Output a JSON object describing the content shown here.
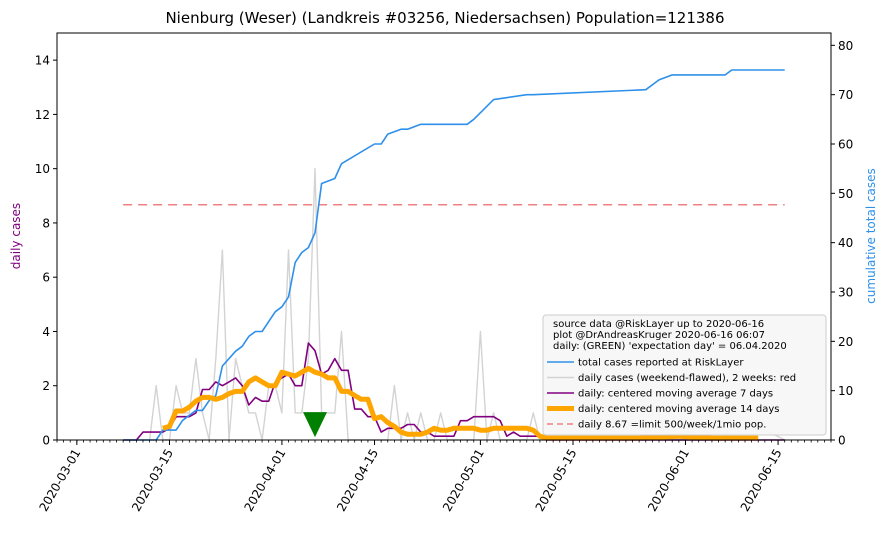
{
  "chart_data": {
    "type": "line",
    "title": "Nienburg (Weser) (Landkreis #03256, Niedersachsen) Population=121386",
    "ylabel_left": "daily cases",
    "ylabel_right": "cumulative total cases",
    "x_range": [
      "2020-02-27",
      "2020-06-23"
    ],
    "ylim_left": [
      0,
      15
    ],
    "ylim_right": [
      0,
      82.5
    ],
    "x_ticks": [
      "2020-03-01",
      "2020-03-15",
      "2020-04-01",
      "2020-04-15",
      "2020-05-01",
      "2020-05-15",
      "2020-06-01",
      "2020-06-15"
    ],
    "y_ticks_left": [
      0,
      2,
      4,
      6,
      8,
      10,
      12,
      14
    ],
    "y_ticks_right": [
      0,
      10,
      20,
      30,
      40,
      50,
      60,
      70,
      80
    ],
    "legend_position": "bottom-right",
    "legend_header": [
      "source data @RiskLayer up to 2020-06-16",
      "plot @DrAndreasKruger 2020-06-16 06:07",
      "daily: (GREEN) 'expectation day' = 06.04.2020"
    ],
    "colors": {
      "total": "#2e90ea",
      "daily": "#d3d3d3",
      "ma7": "#800080",
      "ma14": "#ffa500",
      "limit": "#f08080",
      "marker": "#008000",
      "ylabel_left": "#800080",
      "ylabel_right": "#2e90ea"
    },
    "limit_value": 8.67,
    "limit_x_range": [
      "2020-03-08",
      "2020-06-16"
    ],
    "expectation_day": {
      "x": "2020-04-06",
      "y": 0.55
    },
    "series": [
      {
        "name": "total cases reported at RiskLayer",
        "axis": "right",
        "x": [
          "2020-03-08",
          "2020-03-13",
          "2020-03-14",
          "2020-03-16",
          "2020-03-17",
          "2020-03-18",
          "2020-03-19",
          "2020-03-20",
          "2020-03-21",
          "2020-03-22",
          "2020-03-23",
          "2020-03-25",
          "2020-03-26",
          "2020-03-27",
          "2020-03-28",
          "2020-03-29",
          "2020-03-30",
          "2020-03-31",
          "2020-04-01",
          "2020-04-02",
          "2020-04-03",
          "2020-04-04",
          "2020-04-05",
          "2020-04-06",
          "2020-04-07",
          "2020-04-09",
          "2020-04-10",
          "2020-04-15",
          "2020-04-16",
          "2020-04-17",
          "2020-04-19",
          "2020-04-20",
          "2020-04-22",
          "2020-04-29",
          "2020-04-30",
          "2020-05-03",
          "2020-05-08",
          "2020-05-09",
          "2020-05-26",
          "2020-05-28",
          "2020-05-30",
          "2020-06-07",
          "2020-06-08",
          "2020-06-16"
        ],
        "values": [
          0,
          0,
          2,
          2,
          4,
          5,
          6,
          6,
          8,
          9,
          15,
          18,
          19,
          21,
          22,
          22,
          24,
          26,
          27,
          29,
          36,
          38,
          39,
          42,
          52,
          53,
          56,
          60,
          60,
          62,
          63,
          63,
          64,
          64,
          65,
          69,
          70,
          70,
          71,
          73,
          74,
          74,
          75,
          75
        ]
      },
      {
        "name": "daily cases (weekend-flawed), 2 weeks: red",
        "axis": "left",
        "x": [
          "2020-03-08",
          "2020-03-12",
          "2020-03-13",
          "2020-03-14",
          "2020-03-15",
          "2020-03-16",
          "2020-03-17",
          "2020-03-18",
          "2020-03-19",
          "2020-03-20",
          "2020-03-21",
          "2020-03-22",
          "2020-03-23",
          "2020-03-24",
          "2020-03-25",
          "2020-03-26",
          "2020-03-27",
          "2020-03-28",
          "2020-03-29",
          "2020-03-30",
          "2020-03-31",
          "2020-04-01",
          "2020-04-02",
          "2020-04-03",
          "2020-04-04",
          "2020-04-05",
          "2020-04-06",
          "2020-04-07",
          "2020-04-08",
          "2020-04-09",
          "2020-04-10",
          "2020-04-11",
          "2020-04-12",
          "2020-04-13",
          "2020-04-14",
          "2020-04-15",
          "2020-04-16",
          "2020-04-17",
          "2020-04-18",
          "2020-04-19",
          "2020-04-20",
          "2020-04-21",
          "2020-04-22",
          "2020-04-23",
          "2020-04-24",
          "2020-04-25",
          "2020-04-26",
          "2020-04-27",
          "2020-04-28",
          "2020-04-29",
          "2020-04-30",
          "2020-05-01",
          "2020-05-02",
          "2020-05-03",
          "2020-05-04",
          "2020-05-05",
          "2020-05-06",
          "2020-05-07",
          "2020-05-08",
          "2020-05-09",
          "2020-05-10",
          "2020-05-11",
          "2020-05-12",
          "2020-05-26",
          "2020-05-27",
          "2020-05-28",
          "2020-05-29",
          "2020-06-07",
          "2020-06-08",
          "2020-06-16"
        ],
        "values": [
          0,
          0,
          2,
          0,
          0,
          2,
          1,
          1,
          3,
          1,
          0,
          3,
          7,
          0,
          3,
          2,
          1,
          1,
          0,
          2,
          2,
          1,
          7,
          1,
          1,
          3,
          10,
          1,
          1,
          1,
          4,
          0,
          0,
          0,
          0,
          0,
          0,
          0,
          2,
          0,
          1,
          0,
          1,
          0,
          0,
          1,
          0,
          0,
          0,
          0,
          0,
          4,
          0,
          1,
          0,
          0,
          0,
          0,
          0,
          1,
          0,
          0,
          0,
          0,
          1,
          1,
          0,
          0,
          1,
          0
        ]
      },
      {
        "name": "daily: centered moving average 7 days",
        "axis": "left",
        "x": [
          "2020-03-08",
          "2020-03-10",
          "2020-03-11",
          "2020-03-12",
          "2020-03-13",
          "2020-03-14",
          "2020-03-15",
          "2020-03-16",
          "2020-03-17",
          "2020-03-18",
          "2020-03-19",
          "2020-03-20",
          "2020-03-21",
          "2020-03-22",
          "2020-03-23",
          "2020-03-24",
          "2020-03-25",
          "2020-03-26",
          "2020-03-27",
          "2020-03-28",
          "2020-03-29",
          "2020-03-30",
          "2020-03-31",
          "2020-04-01",
          "2020-04-02",
          "2020-04-03",
          "2020-04-04",
          "2020-04-05",
          "2020-04-06",
          "2020-04-07",
          "2020-04-08",
          "2020-04-09",
          "2020-04-10",
          "2020-04-11",
          "2020-04-12",
          "2020-04-13",
          "2020-04-14",
          "2020-04-15",
          "2020-04-16",
          "2020-04-17",
          "2020-04-18",
          "2020-04-19",
          "2020-04-20",
          "2020-04-21",
          "2020-04-22",
          "2020-04-23",
          "2020-04-24",
          "2020-04-25",
          "2020-04-26",
          "2020-04-27",
          "2020-04-28",
          "2020-04-29",
          "2020-04-30",
          "2020-05-01",
          "2020-05-02",
          "2020-05-03",
          "2020-05-04",
          "2020-05-05",
          "2020-05-06",
          "2020-05-07",
          "2020-05-08",
          "2020-05-09",
          "2020-05-10",
          "2020-05-11",
          "2020-05-12",
          "2020-05-15",
          "2020-06-16"
        ],
        "values": [
          0,
          0,
          0.29,
          0.29,
          0.29,
          0.29,
          0.43,
          0.86,
          0.86,
          0.86,
          1.0,
          1.86,
          1.86,
          2.14,
          2.0,
          2.14,
          2.29,
          2.0,
          1.29,
          1.57,
          1.43,
          1.43,
          2.14,
          2.29,
          2.43,
          2.0,
          2.0,
          3.57,
          3.29,
          2.43,
          2.57,
          3.0,
          2.57,
          2.57,
          1.14,
          1.14,
          0.86,
          0.86,
          0.29,
          0.43,
          0.43,
          0.43,
          0.57,
          0.57,
          0.29,
          0.29,
          0.14,
          0.14,
          0.14,
          0.14,
          0.71,
          0.71,
          0.86,
          0.86,
          0.86,
          0.86,
          0.71,
          0.14,
          0.29,
          0.14,
          0.14,
          0.14,
          0.14,
          0,
          0,
          0,
          0
        ]
      },
      {
        "name": "daily: centered moving average 14 days",
        "axis": "left",
        "x": [
          "2020-03-14",
          "2020-03-15",
          "2020-03-16",
          "2020-03-17",
          "2020-03-18",
          "2020-03-19",
          "2020-03-20",
          "2020-03-21",
          "2020-03-22",
          "2020-03-23",
          "2020-03-24",
          "2020-03-25",
          "2020-03-26",
          "2020-03-27",
          "2020-03-28",
          "2020-03-29",
          "2020-03-30",
          "2020-03-31",
          "2020-04-01",
          "2020-04-02",
          "2020-04-03",
          "2020-04-04",
          "2020-04-05",
          "2020-04-06",
          "2020-04-07",
          "2020-04-08",
          "2020-04-09",
          "2020-04-10",
          "2020-04-11",
          "2020-04-12",
          "2020-04-13",
          "2020-04-14",
          "2020-04-15",
          "2020-04-16",
          "2020-04-17",
          "2020-04-18",
          "2020-04-19",
          "2020-04-20",
          "2020-04-21",
          "2020-04-22",
          "2020-04-23",
          "2020-04-24",
          "2020-04-25",
          "2020-04-26",
          "2020-04-27",
          "2020-04-28",
          "2020-04-29",
          "2020-04-30",
          "2020-05-01",
          "2020-05-02",
          "2020-05-03",
          "2020-05-04",
          "2020-05-05",
          "2020-05-06",
          "2020-05-07",
          "2020-05-08",
          "2020-05-09",
          "2020-05-10",
          "2020-05-11",
          "2020-05-12",
          "2020-05-13",
          "2020-05-20",
          "2020-05-25",
          "2020-05-31",
          "2020-06-05",
          "2020-06-12"
        ],
        "values": [
          0.43,
          0.5,
          1.07,
          1.07,
          1.21,
          1.43,
          1.57,
          1.57,
          1.5,
          1.57,
          1.71,
          1.79,
          1.79,
          2.14,
          2.29,
          2.14,
          2.0,
          2.0,
          2.5,
          2.43,
          2.36,
          2.5,
          2.64,
          2.5,
          2.43,
          2.29,
          2.29,
          1.79,
          1.79,
          1.64,
          1.5,
          1.5,
          0.79,
          0.86,
          0.64,
          0.5,
          0.29,
          0.21,
          0.21,
          0.21,
          0.29,
          0.43,
          0.36,
          0.36,
          0.43,
          0.43,
          0.43,
          0.43,
          0.36,
          0.36,
          0.43,
          0.43,
          0.43,
          0.43,
          0.43,
          0.43,
          0.36,
          0.14,
          0.07,
          0.07,
          0.07,
          0.07,
          0.07,
          0.14,
          0.07,
          0.07
        ]
      }
    ],
    "legend_entries": [
      {
        "label": "total cases reported at RiskLayer",
        "style": "total"
      },
      {
        "label": "daily cases (weekend-flawed), 2 weeks: red",
        "style": "daily"
      },
      {
        "label": "daily: centered moving average 7 days",
        "style": "ma7"
      },
      {
        "label": "daily: centered moving average 14 days",
        "style": "ma14"
      },
      {
        "label": "daily 8.67 =limit 500/week/1mio pop.",
        "style": "limit"
      }
    ]
  }
}
